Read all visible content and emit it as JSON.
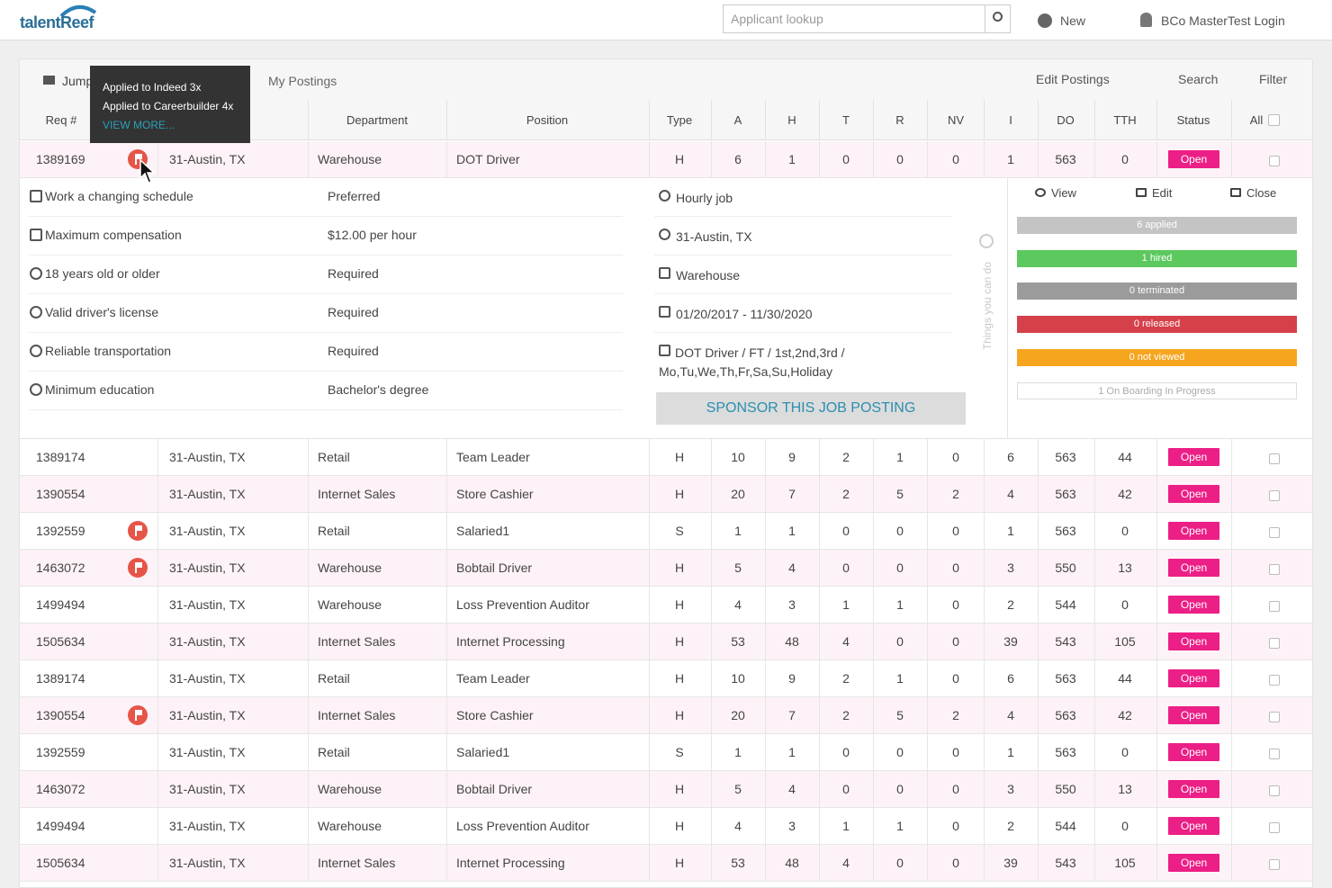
{
  "header": {
    "logo": "talentReef",
    "search_placeholder": "Applicant lookup",
    "new_button": "New",
    "user": "BCo MasterTest Login"
  },
  "breadcrumb": {
    "home": "Jump",
    "current": "My Postings"
  },
  "toolbar": {
    "edit_postings": "Edit Postings",
    "search": "Search",
    "filter": "Filter"
  },
  "tooltip": {
    "lines": [
      "Applied to Indeed 3x",
      "Applied to Careerbuilder 4x"
    ],
    "link": "VIEW MORE..."
  },
  "table": {
    "columns": [
      "Req #",
      "Department",
      "Position",
      "Type",
      "A",
      "H",
      "T",
      "R",
      "NV",
      "I",
      "DO",
      "TTH",
      "Status",
      "All"
    ],
    "rows": [
      {
        "req": "1389169",
        "flag": true,
        "location": "31-Austin, TX",
        "department": "Warehouse",
        "position": "DOT Driver",
        "type": "H",
        "a": "6",
        "h": "1",
        "t": "0",
        "r": "0",
        "nv": "0",
        "i": "1",
        "do": "563",
        "tth": "0",
        "status": "Open",
        "expanded": true
      },
      {
        "req": "1389174",
        "flag": false,
        "location": "31-Austin, TX",
        "department": "Retail",
        "position": "Team Leader",
        "type": "H",
        "a": "10",
        "h": "9",
        "t": "2",
        "r": "1",
        "nv": "0",
        "i": "6",
        "do": "563",
        "tth": "44",
        "status": "Open"
      },
      {
        "req": "1390554",
        "flag": false,
        "location": "31-Austin, TX",
        "department": "Internet Sales",
        "position": "Store Cashier",
        "type": "H",
        "a": "20",
        "h": "7",
        "t": "2",
        "r": "5",
        "nv": "2",
        "i": "4",
        "do": "563",
        "tth": "42",
        "status": "Open"
      },
      {
        "req": "1392559",
        "flag": true,
        "location": "31-Austin, TX",
        "department": "Retail",
        "position": "Salaried1",
        "type": "S",
        "a": "1",
        "h": "1",
        "t": "0",
        "r": "0",
        "nv": "0",
        "i": "1",
        "do": "563",
        "tth": "0",
        "status": "Open"
      },
      {
        "req": "1463072",
        "flag": true,
        "location": "31-Austin, TX",
        "department": "Warehouse",
        "position": "Bobtail Driver",
        "type": "H",
        "a": "5",
        "h": "4",
        "t": "0",
        "r": "0",
        "nv": "0",
        "i": "3",
        "do": "550",
        "tth": "13",
        "status": "Open"
      },
      {
        "req": "1499494",
        "flag": false,
        "location": "31-Austin, TX",
        "department": "Warehouse",
        "position": "Loss Prevention Auditor",
        "type": "H",
        "a": "4",
        "h": "3",
        "t": "1",
        "r": "1",
        "nv": "0",
        "i": "2",
        "do": "544",
        "tth": "0",
        "status": "Open"
      },
      {
        "req": "1505634",
        "flag": false,
        "location": "31-Austin, TX",
        "department": "Internet Sales",
        "position": "Internet Processing",
        "type": "H",
        "a": "53",
        "h": "48",
        "t": "4",
        "r": "0",
        "nv": "0",
        "i": "39",
        "do": "543",
        "tth": "105",
        "status": "Open"
      },
      {
        "req": "1389174",
        "flag": false,
        "location": "31-Austin, TX",
        "department": "Retail",
        "position": "Team Leader",
        "type": "H",
        "a": "10",
        "h": "9",
        "t": "2",
        "r": "1",
        "nv": "0",
        "i": "6",
        "do": "563",
        "tth": "44",
        "status": "Open"
      },
      {
        "req": "1390554",
        "flag": true,
        "location": "31-Austin, TX",
        "department": "Internet Sales",
        "position": "Store Cashier",
        "type": "H",
        "a": "20",
        "h": "7",
        "t": "2",
        "r": "5",
        "nv": "2",
        "i": "4",
        "do": "563",
        "tth": "42",
        "status": "Open"
      },
      {
        "req": "1392559",
        "flag": false,
        "location": "31-Austin, TX",
        "department": "Retail",
        "position": "Salaried1",
        "type": "S",
        "a": "1",
        "h": "1",
        "t": "0",
        "r": "0",
        "nv": "0",
        "i": "1",
        "do": "563",
        "tth": "0",
        "status": "Open"
      },
      {
        "req": "1463072",
        "flag": false,
        "location": "31-Austin, TX",
        "department": "Warehouse",
        "position": "Bobtail Driver",
        "type": "H",
        "a": "5",
        "h": "4",
        "t": "0",
        "r": "0",
        "nv": "0",
        "i": "3",
        "do": "550",
        "tth": "13",
        "status": "Open"
      },
      {
        "req": "1499494",
        "flag": false,
        "location": "31-Austin, TX",
        "department": "Warehouse",
        "position": "Loss Prevention Auditor",
        "type": "H",
        "a": "4",
        "h": "3",
        "t": "1",
        "r": "1",
        "nv": "0",
        "i": "2",
        "do": "544",
        "tth": "0",
        "status": "Open"
      },
      {
        "req": "1505634",
        "flag": false,
        "location": "31-Austin, TX",
        "department": "Internet Sales",
        "position": "Internet Processing",
        "type": "H",
        "a": "53",
        "h": "48",
        "t": "4",
        "r": "0",
        "nv": "0",
        "i": "39",
        "do": "543",
        "tth": "105",
        "status": "Open"
      }
    ]
  },
  "detail": {
    "requirements": [
      {
        "label": "Work a changing schedule",
        "value": "Preferred"
      },
      {
        "label": "Maximum compensation",
        "value": "$12.00 per hour"
      },
      {
        "label": "18 years old or older",
        "value": "Required"
      },
      {
        "label": "Valid driver's license",
        "value": "Required"
      },
      {
        "label": "Reliable transportation",
        "value": "Required"
      },
      {
        "label": "Minimum education",
        "value": "Bachelor's degree"
      }
    ],
    "info": [
      "Hourly job",
      "31-Austin, TX",
      "Warehouse",
      "01/20/2017 - 11/30/2020",
      "DOT Driver / FT / 1st,2nd,3rd / Mo,Tu,We,Th,Fr,Sa,Su,Holiday"
    ],
    "sponsor": "SPONSOR THIS JOB POSTING",
    "side_label": "Things you can do",
    "actions": [
      "View",
      "Edit",
      "Close"
    ],
    "statuses": [
      {
        "label": "6 applied",
        "color": "#c4c4c4"
      },
      {
        "label": "1 hired",
        "color": "#5cc95f"
      },
      {
        "label": "0 terminated",
        "color": "#9b9b9b"
      },
      {
        "label": "0 released",
        "color": "#d6404a"
      },
      {
        "label": "0 not viewed",
        "color": "#f6a51f"
      },
      {
        "label": "1 On Boarding In Progress",
        "color": "#ffffff"
      }
    ]
  }
}
